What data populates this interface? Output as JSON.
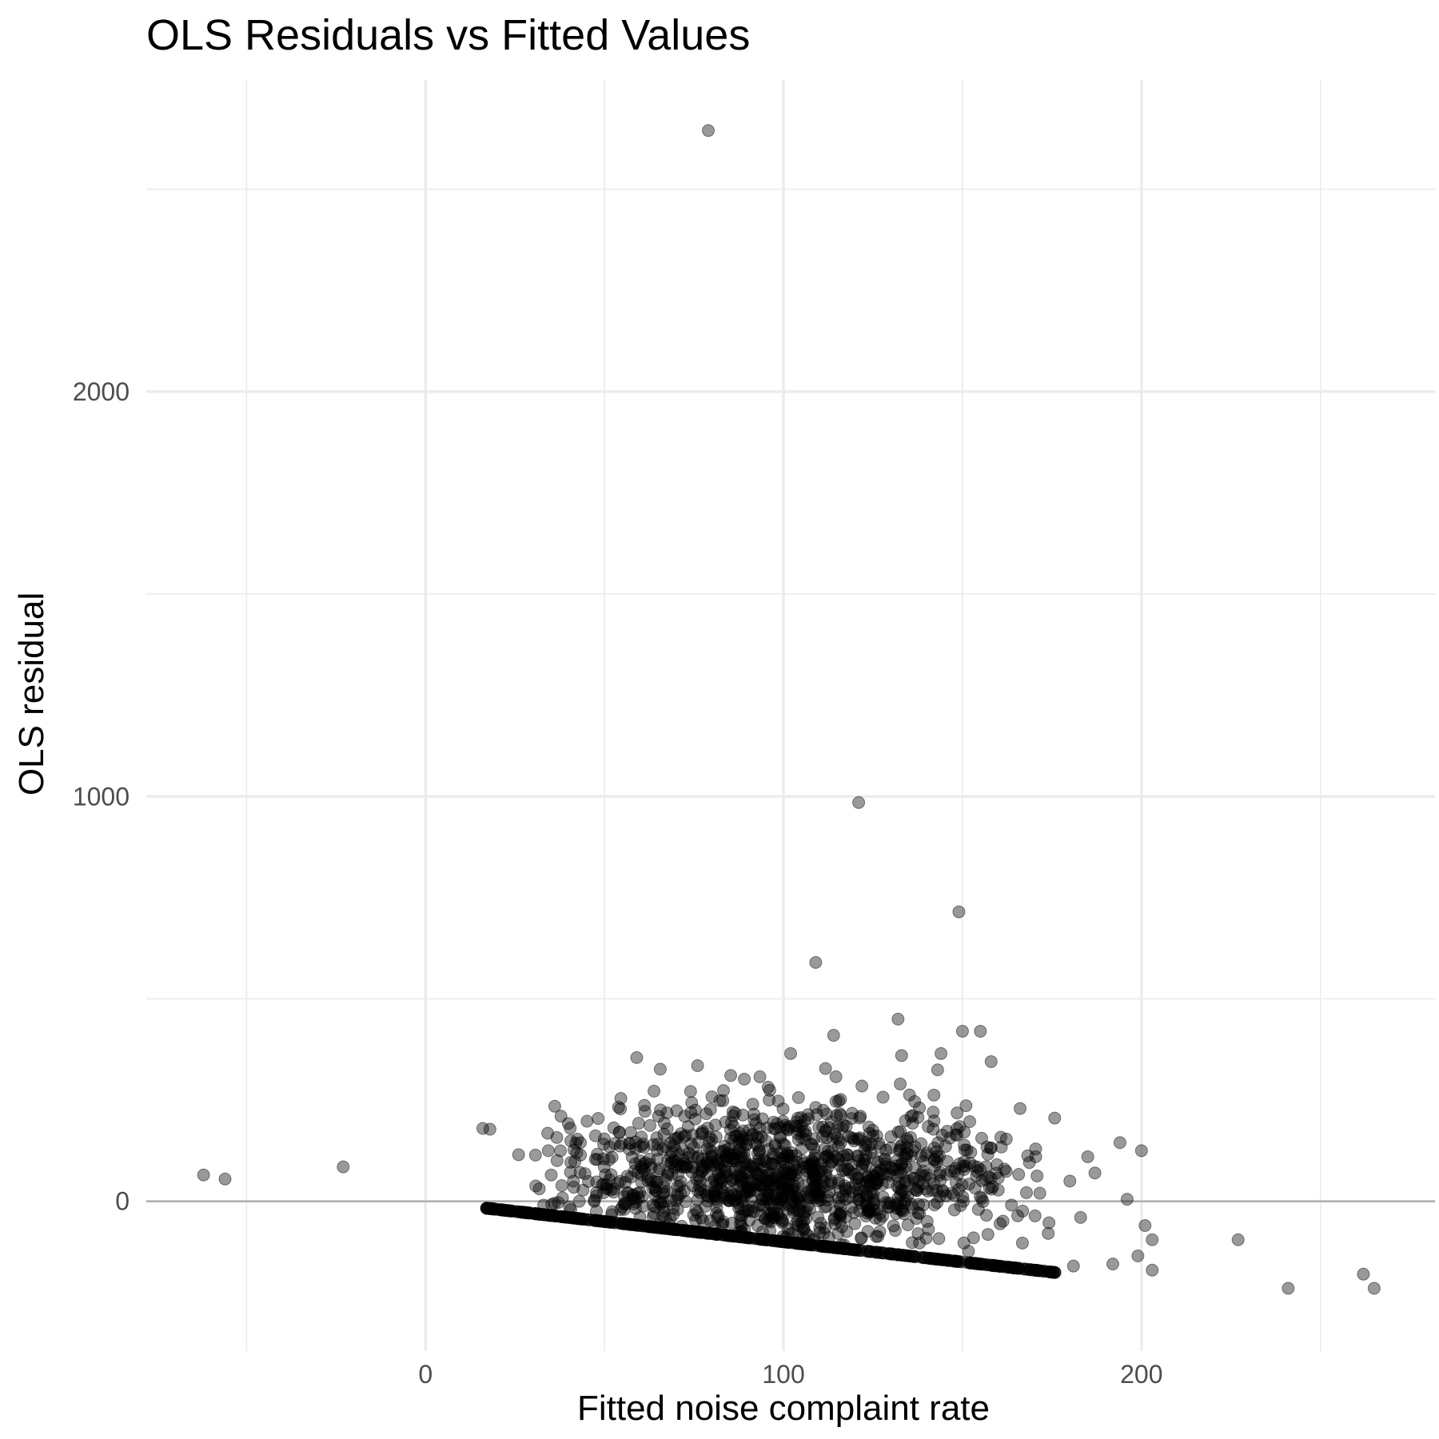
{
  "chart_data": {
    "type": "scatter",
    "title": "OLS Residuals vs Fitted Values",
    "xlabel": "Fitted noise complaint rate",
    "ylabel": "OLS residual",
    "xlim": [
      -78,
      282
    ],
    "ylim": [
      -370,
      2770
    ],
    "x_ticks": [
      0,
      100,
      200
    ],
    "x_minor_ticks": [
      -50,
      50,
      150,
      250
    ],
    "y_ticks": [
      0,
      1000,
      2000
    ],
    "y_minor_ticks": [
      500,
      1500,
      2500
    ],
    "grid": true,
    "reference_line_y": 0,
    "point_color": "#000000",
    "point_opacity": 0.4,
    "reference_line_color": "#b3b3b3",
    "outliers": [
      {
        "x": 79,
        "y": 2645
      },
      {
        "x": 121,
        "y": 985
      },
      {
        "x": 149,
        "y": 715
      },
      {
        "x": 109,
        "y": 590
      },
      {
        "x": 132,
        "y": 450
      },
      {
        "x": 150,
        "y": 420
      },
      {
        "x": 155,
        "y": 420
      },
      {
        "x": 114,
        "y": 410
      },
      {
        "x": 102,
        "y": 365
      },
      {
        "x": 144,
        "y": 365
      },
      {
        "x": 59,
        "y": 355
      },
      {
        "x": 133,
        "y": 360
      },
      {
        "x": 76,
        "y": 335
      },
      {
        "x": 158,
        "y": 345
      },
      {
        "x": -62,
        "y": 65
      },
      {
        "x": -56,
        "y": 55
      },
      {
        "x": -23,
        "y": 85
      },
      {
        "x": 16,
        "y": 180
      },
      {
        "x": 18,
        "y": 178
      },
      {
        "x": 26,
        "y": 115
      },
      {
        "x": 194,
        "y": 145
      },
      {
        "x": 200,
        "y": 125
      },
      {
        "x": 185,
        "y": 110
      },
      {
        "x": 187,
        "y": 70
      },
      {
        "x": 196,
        "y": 5
      },
      {
        "x": 201,
        "y": -60
      },
      {
        "x": 203,
        "y": -95
      },
      {
        "x": 199,
        "y": -135
      },
      {
        "x": 203,
        "y": -170
      },
      {
        "x": 192,
        "y": -155
      },
      {
        "x": 181,
        "y": -160
      },
      {
        "x": 227,
        "y": -95
      },
      {
        "x": 241,
        "y": -215
      },
      {
        "x": 262,
        "y": -180
      },
      {
        "x": 265,
        "y": -215
      },
      {
        "x": 36,
        "y": -5
      },
      {
        "x": 180,
        "y": 50
      },
      {
        "x": 183,
        "y": -40
      }
    ],
    "lower_boundary": {
      "x_start": 17,
      "x_end": 176,
      "slope": -1,
      "offset": 0
    },
    "cloud": {
      "x_min": 30,
      "x_max": 178,
      "center_x": 100,
      "center_y": 60,
      "sd_x": 32,
      "sd_y": 95,
      "count": 1200
    },
    "boundary_count": 600
  }
}
